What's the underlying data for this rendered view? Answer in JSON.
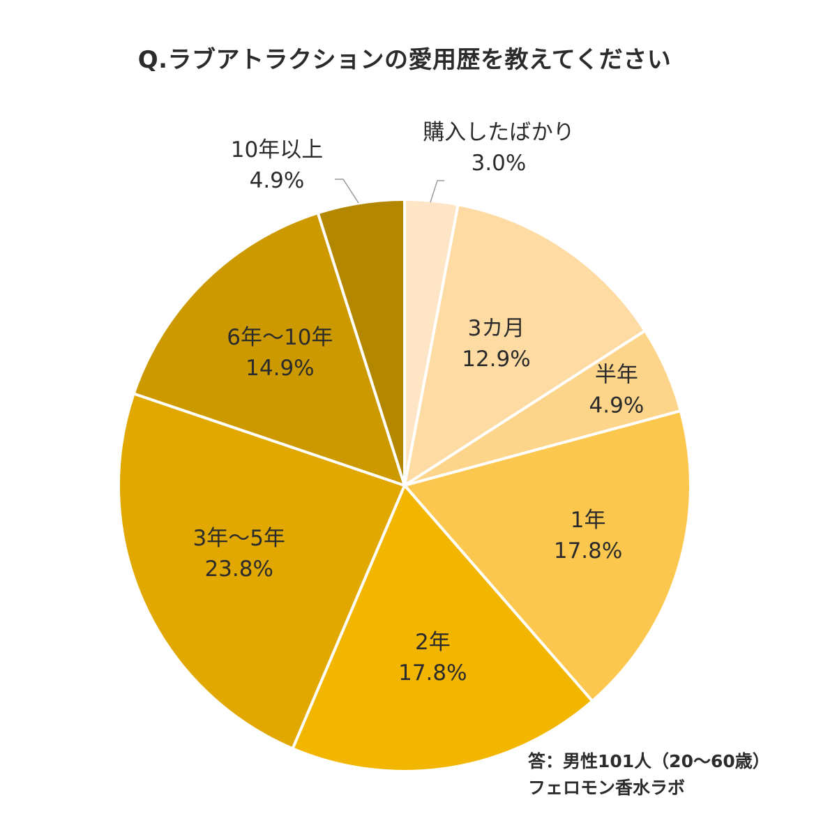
{
  "chart_data": {
    "type": "pie",
    "title": "Q.ラブアトラクションの愛用歴を教えてください",
    "start_angle_deg": 0,
    "direction": "clockwise",
    "slices": [
      {
        "label": "購入したばかり",
        "value": 3.0,
        "value_label": "3.0%",
        "color": "#fde5c6",
        "label_position": "outside"
      },
      {
        "label": "3カ月",
        "value": 12.9,
        "value_label": "12.9%",
        "color": "#fddba3",
        "label_position": "inside"
      },
      {
        "label": "半年",
        "value": 4.9,
        "value_label": "4.9%",
        "color": "#fcd58a",
        "label_position": "inside"
      },
      {
        "label": "1年",
        "value": 17.8,
        "value_label": "17.8%",
        "color": "#fcc74e",
        "label_position": "inside"
      },
      {
        "label": "2年",
        "value": 17.8,
        "value_label": "17.8%",
        "color": "#f3b600",
        "label_position": "inside"
      },
      {
        "label": "3年～5年",
        "value": 23.8,
        "value_label": "23.8%",
        "color": "#e0a800",
        "label_position": "inside"
      },
      {
        "label": "6年～10年",
        "value": 14.9,
        "value_label": "14.9%",
        "color": "#cc9a00",
        "label_position": "inside"
      },
      {
        "label": "10年以上",
        "value": 4.9,
        "value_label": "4.9%",
        "color": "#b38800",
        "label_position": "outside"
      }
    ],
    "unit": "%"
  },
  "footer": {
    "line1": "答：男性101人（20～60歳）",
    "line2": "フェロモン香水ラボ"
  }
}
